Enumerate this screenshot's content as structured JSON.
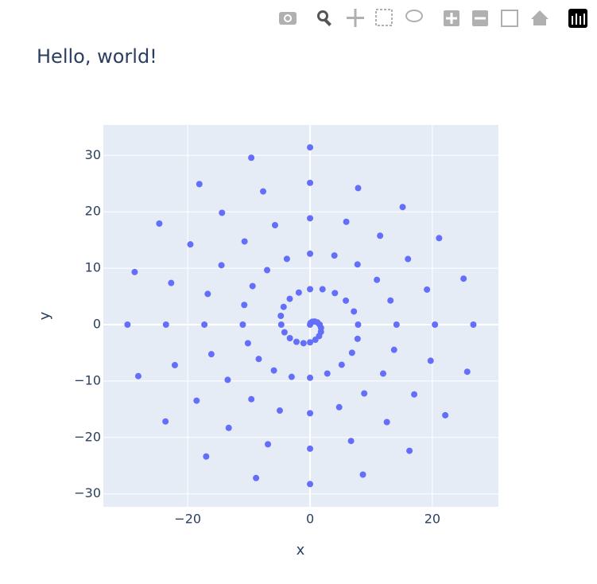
{
  "chart_data": {
    "type": "scatter",
    "title": "Hello, world!",
    "x_label": "x",
    "y_label": "y",
    "color": "#636efa",
    "grid": true,
    "xlim": [
      -33.8,
      30.8
    ],
    "ylim": [
      -32.3,
      35.4
    ],
    "xticks": [
      {
        "value": -20,
        "label": "−20"
      },
      0,
      20
    ],
    "yticks": [
      {
        "value": -30,
        "label": "−30"
      },
      {
        "value": -20,
        "label": "−20"
      },
      {
        "value": -10,
        "label": "−10"
      },
      0,
      10,
      20,
      30
    ],
    "x": [
      0,
      0.1,
      0.37,
      0.76,
      1.2,
      1.57,
      1.79,
      1.78,
      1.48,
      0.87,
      0,
      -1.07,
      -2.22,
      -3.3,
      -4.18,
      -4.71,
      -4.78,
      -4.32,
      -3.32,
      -1.84,
      0,
      2.04,
      4.06,
      5.85,
      7.17,
      7.85,
      7.77,
      6.86,
      5.17,
      2.82,
      0,
      -3.01,
      -5.91,
      -8.39,
      -10.16,
      -11.0,
      -10.76,
      -9.4,
      -7.02,
      -3.79,
      0,
      3.98,
      7.76,
      10.93,
      13.15,
      14.14,
      13.74,
      11.95,
      8.86,
      4.76,
      0,
      -4.95,
      -9.6,
      -13.47,
      -16.14,
      -17.28,
      -16.73,
      -14.49,
      -10.71,
      -5.73,
      0,
      5.92,
      11.45,
      16.01,
      19.12,
      20.42,
      19.72,
      17.03,
      12.56,
      6.7,
      0,
      -6.89,
      -13.3,
      -18.55,
      -22.11,
      -23.56,
      -22.71,
      -19.57,
      -14.4,
      -7.67,
      0,
      7.86,
      15.14,
      21.1,
      25.1,
      26.7,
      25.7,
      22.11,
      16.25,
      8.64,
      0,
      -8.83,
      -16.99,
      -23.64,
      -28.09,
      -29.85,
      -28.68,
      -24.65,
      -18.1,
      -9.61,
      0
    ],
    "values": [
      0,
      0.3,
      0.51,
      0.55,
      0.39,
      0,
      -0.58,
      -1.29,
      -2.03,
      -2.69,
      -3.14,
      -3.29,
      -3.05,
      -2.4,
      -1.36,
      0,
      1.55,
      3.14,
      4.57,
      5.68,
      6.28,
      6.27,
      5.59,
      4.25,
      2.33,
      0,
      -2.52,
      -4.99,
      -7.12,
      -8.67,
      -9.42,
      -9.26,
      -8.13,
      -6.09,
      -3.3,
      0,
      3.49,
      6.83,
      9.66,
      11.65,
      12.57,
      12.25,
      10.67,
      7.94,
      4.27,
      0,
      -4.47,
      -8.68,
      -12.2,
      -14.64,
      -15.71,
      -15.24,
      -13.22,
      -9.79,
      -5.24,
      0,
      5.44,
      10.53,
      14.74,
      17.63,
      18.85,
      18.23,
      15.76,
      11.63,
      6.21,
      0,
      -6.41,
      -12.37,
      -17.28,
      -20.62,
      -21.99,
      -21.21,
      -18.3,
      -13.48,
      -7.18,
      0,
      7.38,
      14.22,
      19.82,
      23.61,
      25.13,
      24.2,
      20.84,
      15.33,
      8.15,
      0,
      -8.35,
      -16.07,
      -22.37,
      -26.59,
      -28.27,
      -27.19,
      -23.38,
      -17.17,
      -9.13,
      0,
      9.32,
      17.91,
      24.91,
      29.58,
      31.42
    ]
  }
}
